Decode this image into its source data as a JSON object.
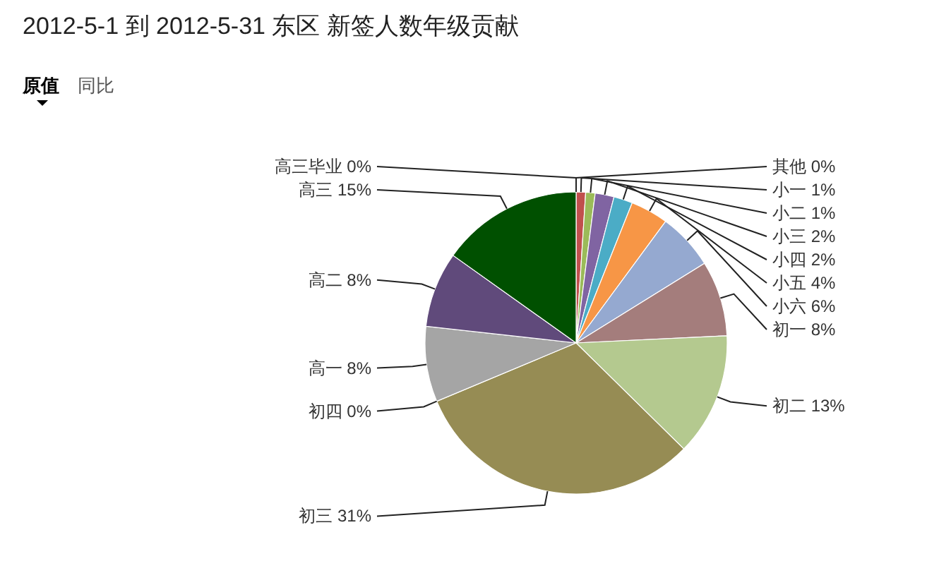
{
  "chart_data": {
    "type": "pie",
    "title": "2012-5-1 到 2012-5-31 东区 新签人数年级贡献",
    "annotations": [
      "原值",
      "同比"
    ],
    "categories": [
      "其他",
      "小一",
      "小二",
      "小三",
      "小四",
      "小五",
      "小六",
      "初一",
      "初二",
      "初三",
      "初四",
      "高一",
      "高二",
      "高三",
      "高三毕业"
    ],
    "values": [
      0,
      1,
      1,
      2,
      2,
      4,
      6,
      8,
      13,
      31,
      0,
      8,
      8,
      15,
      0
    ],
    "value_labels": [
      "0%",
      "1%",
      "1%",
      "2%",
      "2%",
      "4%",
      "6%",
      "8%",
      "13%",
      "31%",
      "0%",
      "8%",
      "8%",
      "15%",
      "0%"
    ],
    "colors": [
      "#4f81bd",
      "#c0504d",
      "#9bbb59",
      "#8064a2",
      "#4bacc6",
      "#f79646",
      "#95a9d0",
      "#a47d7c",
      "#b4c98f",
      "#968c54",
      "#7b7b3c",
      "#a5a5a5",
      "#604a7b",
      "#005000",
      "#7f7f7f"
    ]
  }
}
